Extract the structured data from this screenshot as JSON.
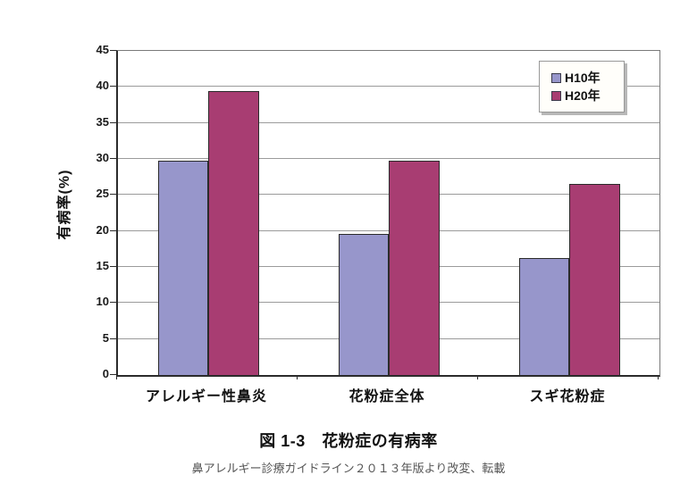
{
  "chart_data": {
    "type": "bar",
    "categories": [
      "アレルギー性鼻炎",
      "花粉症全体",
      "スギ花粉症"
    ],
    "series": [
      {
        "name": "H10年",
        "color": "#9796cb",
        "values": [
          29.8,
          19.6,
          16.2
        ]
      },
      {
        "name": "H20年",
        "color": "#a83d72",
        "values": [
          39.4,
          29.8,
          26.5
        ]
      }
    ],
    "ylabel": "有病率(%)",
    "xlabel": "",
    "ylim": [
      0,
      45
    ],
    "ytick_step": 5,
    "yticks": [
      0,
      5,
      10,
      15,
      20,
      25,
      30,
      35,
      40,
      45
    ],
    "grid": "horizontal",
    "legend_position": "top-right",
    "colors": {
      "grid_line": "#9b9b9b",
      "axis_line": "#2b2b2b",
      "bar_border": "#2b2b2b",
      "legend_border": "#999999",
      "legend_shadow": "#b8b8b8",
      "text": "#111111",
      "source_text": "#555555",
      "background": "#ffffff"
    }
  },
  "caption": {
    "title": "図 1-3　花粉症の有病率",
    "source": "鼻アレルギー診療ガイドライン２０１３年版より改変、転載"
  }
}
